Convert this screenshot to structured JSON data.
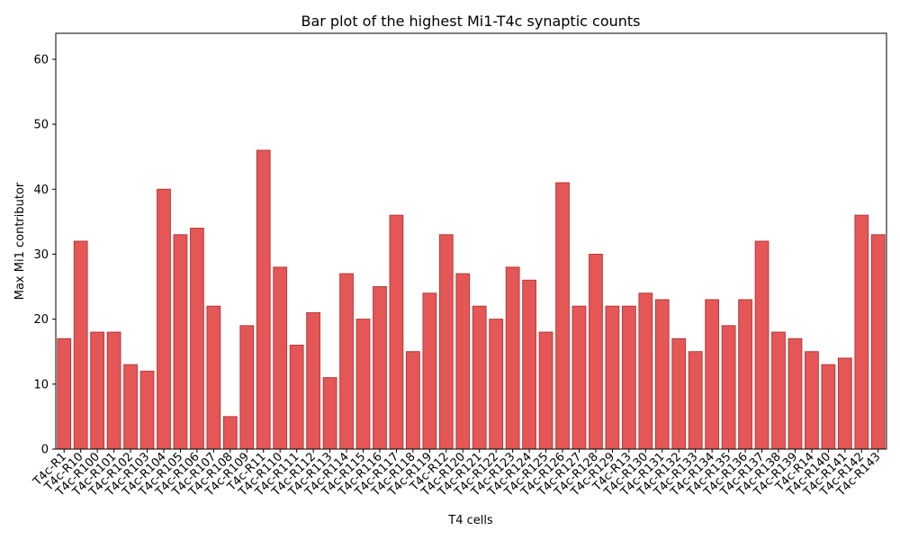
{
  "chart_data": {
    "type": "bar",
    "title": "Bar plot of the highest Mi1-T4c synaptic counts",
    "xlabel": "T4 cells",
    "ylabel": "Max Mi1 contributor",
    "ylim": [
      0,
      64
    ],
    "yticks": [
      0,
      10,
      20,
      30,
      40,
      50,
      60
    ],
    "grid": false,
    "categories": [
      "T4c-R1",
      "T4c-R10",
      "T4c-R100",
      "T4c-R101",
      "T4c-R102",
      "T4c-R103",
      "T4c-R104",
      "T4c-R105",
      "T4c-R106",
      "T4c-R107",
      "T4c-R108",
      "T4c-R109",
      "T4c-R11",
      "T4c-R110",
      "T4c-R111",
      "T4c-R112",
      "T4c-R113",
      "T4c-R114",
      "T4c-R115",
      "T4c-R116",
      "T4c-R117",
      "T4c-R118",
      "T4c-R119",
      "T4c-R12",
      "T4c-R120",
      "T4c-R121",
      "T4c-R122",
      "T4c-R123",
      "T4c-R124",
      "T4c-R125",
      "T4c-R126",
      "T4c-R127",
      "T4c-R128",
      "T4c-R129",
      "T4c-R13",
      "T4c-R130",
      "T4c-R131",
      "T4c-R132",
      "T4c-R133",
      "T4c-R134",
      "T4c-R135",
      "T4c-R136",
      "T4c-R137",
      "T4c-R138",
      "T4c-R139",
      "T4c-R14",
      "T4c-R140",
      "T4c-R141",
      "T4c-R142",
      "T4c-R143"
    ],
    "values": [
      17,
      32,
      18,
      18,
      13,
      12,
      40,
      33,
      34,
      22,
      5,
      19,
      46,
      28,
      16,
      21,
      11,
      27,
      20,
      25,
      36,
      15,
      24,
      33,
      27,
      22,
      20,
      28,
      26,
      18,
      41,
      22,
      30,
      22,
      22,
      24,
      23,
      17,
      15,
      23,
      19,
      23,
      32,
      18,
      17,
      15,
      13,
      14,
      36,
      33
    ],
    "colors": {
      "bar_fill": "#e45756",
      "bar_edge": "#b53a3a"
    }
  }
}
